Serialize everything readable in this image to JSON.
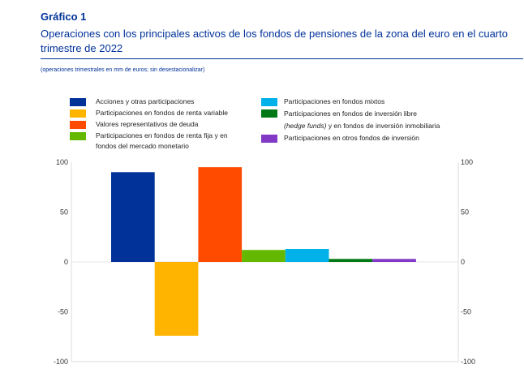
{
  "header": {
    "label": "Gráfico 1",
    "title": "Operaciones con los principales activos de los fondos de pensiones de la zona del euro en el cuarto trimestre de 2022",
    "note": "(operaciones trimestrales en mm de euros; sin desestacionalizar)"
  },
  "chart_data": {
    "type": "bar",
    "categories": [
      "Acciones y otras participaciones",
      "Participaciones en fondos de renta variable",
      "Valores representativos de deuda",
      "Participaciones en fondos de renta fija y en fondos del mercado monetario",
      "Participaciones en fondos mixtos",
      "Participaciones en fondos de inversión libre (hedge funds) y en fondos de inversión inmobiliaria",
      "Participaciones en otros fondos de inversión"
    ],
    "series": [
      {
        "name": "Acciones y otras participaciones",
        "value": 90,
        "color": "#003299"
      },
      {
        "name": "Participaciones en fondos de renta variable",
        "value": -74,
        "color": "#FFB400"
      },
      {
        "name": "Valores representativos de deuda",
        "value": 95,
        "color": "#FF4B00"
      },
      {
        "name": "Participaciones en fondos de renta fija y en fondos del mercado monetario",
        "value": 12,
        "color": "#65B800"
      },
      {
        "name": "Participaciones en fondos mixtos",
        "value": 13,
        "color": "#00B1EA"
      },
      {
        "name": "Participaciones en fondos de inversión libre (hedge funds) y en fondos de inversión inmobiliaria",
        "value": 3,
        "color": "#007816"
      },
      {
        "name": "Participaciones en otros fondos de inversión",
        "value": 3,
        "color": "#8139C6"
      }
    ],
    "legend": {
      "l1": "Acciones y otras participaciones",
      "l2": "Participaciones en fondos de renta variable",
      "l3": "Valores representativos de deuda",
      "l4a": "Participaciones en fondos de renta fija y en",
      "l4b": "fondos del mercado monetario",
      "r1": "Participaciones en fondos mixtos",
      "r2a": "Participaciones en fondos de inversión libre",
      "r2i": "(hedge funds)",
      "r2b": " y en fondos de inversión inmobiliaria",
      "r3": "Participaciones en otros fondos de inversión"
    },
    "ylim": [
      -100,
      100
    ],
    "yticks": [
      "100",
      "50",
      "0",
      "-50",
      "-100"
    ],
    "grid": false,
    "legend_placement": "top"
  }
}
